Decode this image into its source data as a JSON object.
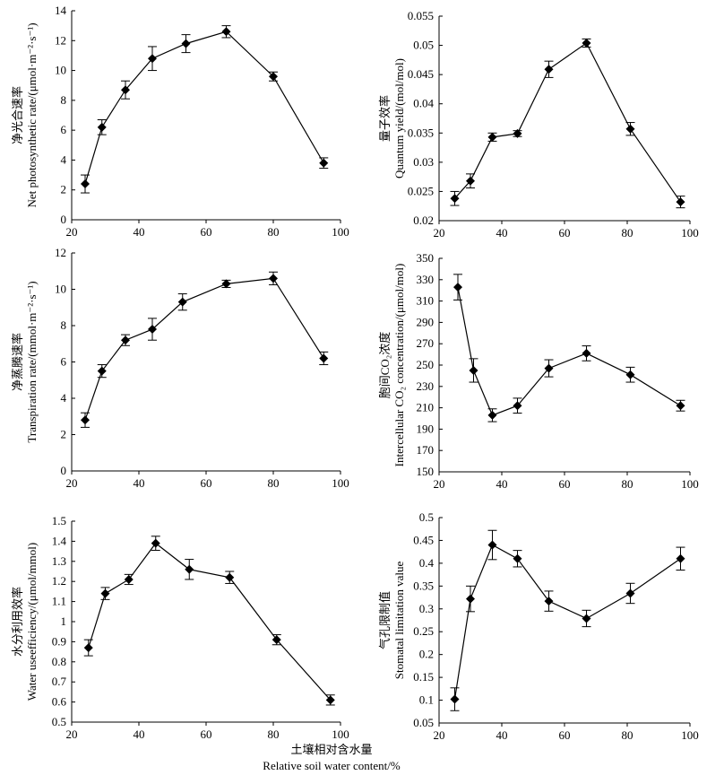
{
  "figure": {
    "xlabel_zh": "土壤相对含水量",
    "xlabel_en": "Relative soil water content/%"
  },
  "chart_data": [
    {
      "type": "line",
      "ylabel_zh": "净光合速率",
      "ylabel_en": "Net photosynthetic rate/(μmol·m⁻²·s⁻¹)",
      "xlim": [
        20,
        100
      ],
      "ylim": [
        0,
        14
      ],
      "xticks": [
        20,
        40,
        60,
        80,
        100
      ],
      "yticks": [
        "0",
        "2",
        "4",
        "6",
        "8",
        "10",
        "12",
        "14"
      ],
      "x": [
        24,
        29,
        36,
        44,
        54,
        66,
        80,
        95
      ],
      "y": [
        2.4,
        6.2,
        8.7,
        10.8,
        11.8,
        12.6,
        9.6,
        3.8
      ],
      "err": [
        0.6,
        0.5,
        0.6,
        0.8,
        0.6,
        0.4,
        0.3,
        0.35
      ]
    },
    {
      "type": "line",
      "ylabel_zh": "量子效率",
      "ylabel_en": "Quantum yield/(mol/mol)",
      "xlim": [
        20,
        100
      ],
      "ylim": [
        0.02,
        0.055
      ],
      "xticks": [
        20,
        40,
        60,
        80,
        100
      ],
      "yticks": [
        "0.02",
        "0.025",
        "0.03",
        "0.035",
        "0.04",
        "0.045",
        "0.05",
        "0.055"
      ],
      "x": [
        25,
        30,
        37,
        45,
        55,
        67,
        81,
        97
      ],
      "y": [
        0.0238,
        0.0268,
        0.0343,
        0.0349,
        0.0459,
        0.0504,
        0.0357,
        0.0232
      ],
      "err": [
        0.0012,
        0.0012,
        0.0007,
        0.0005,
        0.0014,
        0.0007,
        0.0011,
        0.001
      ]
    },
    {
      "type": "line",
      "ylabel_zh": "净蒸腾速率",
      "ylabel_en": "Transpiration rate/(mmol·m⁻²·s⁻¹)",
      "xlim": [
        20,
        100
      ],
      "ylim": [
        0,
        12
      ],
      "xticks": [
        20,
        40,
        60,
        80,
        100
      ],
      "yticks": [
        "0",
        "2",
        "4",
        "6",
        "8",
        "10",
        "12"
      ],
      "x": [
        24,
        29,
        36,
        44,
        53,
        66,
        80,
        95
      ],
      "y": [
        2.8,
        5.5,
        7.2,
        7.8,
        9.3,
        10.3,
        10.6,
        6.2
      ],
      "err": [
        0.4,
        0.35,
        0.3,
        0.6,
        0.45,
        0.2,
        0.35,
        0.35
      ]
    },
    {
      "type": "line",
      "ylabel_zh": "胞间CO₂浓度",
      "ylabel_en": "Intercellular CO₂ concentration/(μmol/mol)",
      "xlim": [
        20,
        100
      ],
      "ylim": [
        150,
        350
      ],
      "xticks": [
        20,
        40,
        60,
        80,
        100
      ],
      "yticks": [
        "150",
        "170",
        "190",
        "210",
        "230",
        "250",
        "270",
        "290",
        "310",
        "330",
        "350"
      ],
      "x": [
        26,
        31,
        37,
        45,
        55,
        67,
        81,
        97
      ],
      "y": [
        323,
        245,
        203,
        212,
        247,
        261,
        241,
        212
      ],
      "err": [
        12,
        11,
        6,
        7,
        8,
        7,
        7,
        5
      ]
    },
    {
      "type": "line",
      "ylabel_zh": "水分利用效率",
      "ylabel_en": "Water useefficiency/(μmol/mmol)",
      "xlim": [
        20,
        100
      ],
      "ylim": [
        0.5,
        1.5
      ],
      "xticks": [
        20,
        40,
        60,
        80,
        100
      ],
      "yticks": [
        "0.5",
        "0.6",
        "0.7",
        "0.8",
        "0.9",
        "1",
        "1.1",
        "1.2",
        "1.3",
        "1.4",
        "1.5"
      ],
      "x": [
        25,
        30,
        37,
        45,
        55,
        67,
        81,
        97
      ],
      "y": [
        0.87,
        1.14,
        1.21,
        1.39,
        1.26,
        1.22,
        0.91,
        0.61
      ],
      "err": [
        0.04,
        0.03,
        0.025,
        0.035,
        0.05,
        0.03,
        0.025,
        0.025
      ]
    },
    {
      "type": "line",
      "ylabel_zh": "气孔限制值",
      "ylabel_en": "Stomatal limitation value",
      "xlim": [
        20,
        100
      ],
      "ylim": [
        0.05,
        0.5
      ],
      "xticks": [
        20,
        40,
        60,
        80,
        100
      ],
      "yticks": [
        "0.05",
        "0.1",
        "0.15",
        "0.2",
        "0.25",
        "0.3",
        "0.35",
        "0.4",
        "0.45",
        "0.5"
      ],
      "x": [
        25,
        30,
        37,
        45,
        55,
        67,
        81,
        97
      ],
      "y": [
        0.102,
        0.322,
        0.44,
        0.41,
        0.317,
        0.279,
        0.334,
        0.41
      ],
      "err": [
        0.025,
        0.028,
        0.032,
        0.018,
        0.022,
        0.018,
        0.022,
        0.025
      ]
    }
  ]
}
